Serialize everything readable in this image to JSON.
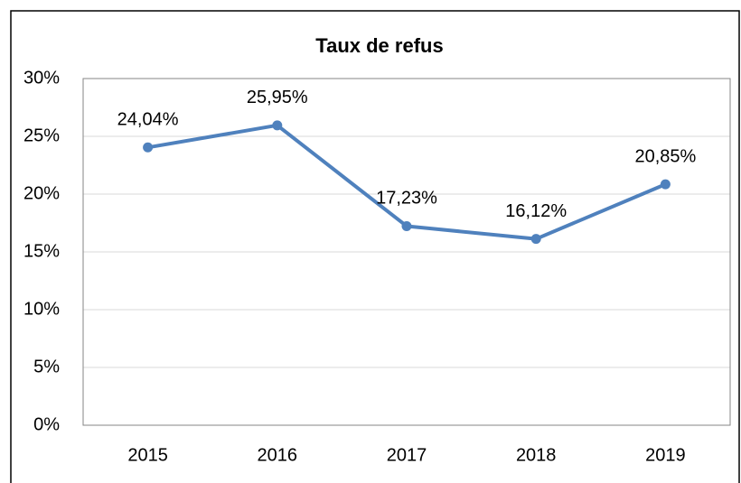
{
  "chart_data": {
    "type": "line",
    "title": "Taux de refus",
    "categories": [
      "2015",
      "2016",
      "2017",
      "2018",
      "2019"
    ],
    "values": [
      24.04,
      25.95,
      17.23,
      16.12,
      20.85
    ],
    "value_labels": [
      "24,04%",
      "25,95%",
      "17,23%",
      "16,12%",
      "20,85%"
    ],
    "color": "#4f81bd",
    "ylim": [
      0,
      30
    ],
    "yticks": [
      {
        "value": 0,
        "label": "0%"
      },
      {
        "value": 5,
        "label": "5%"
      },
      {
        "value": 10,
        "label": "10%"
      },
      {
        "value": 15,
        "label": "15%"
      },
      {
        "value": 20,
        "label": "20%"
      },
      {
        "value": 25,
        "label": "25%"
      },
      {
        "value": 30,
        "label": "30%"
      }
    ],
    "grid": true
  }
}
